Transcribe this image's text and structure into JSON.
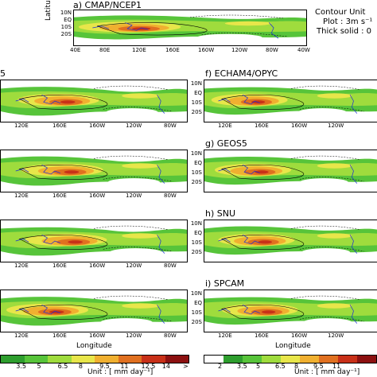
{
  "figure": {
    "panels": [
      {
        "id": "a",
        "title": "a) CMAP/NCEP1"
      },
      {
        "id": "b",
        "title": "5"
      },
      {
        "id": "c",
        "title": ""
      },
      {
        "id": "d",
        "title": ""
      },
      {
        "id": "e",
        "title": ""
      },
      {
        "id": "f",
        "title": "f) ECHAM4/OPYC"
      },
      {
        "id": "g",
        "title": "g) GEOS5"
      },
      {
        "id": "h",
        "title": "h) SNU"
      },
      {
        "id": "i",
        "title": "i) SPCAM"
      }
    ],
    "top_x_ticks": [
      "40E",
      "80E",
      "120E",
      "160E",
      "160W",
      "120W",
      "80W",
      "40W"
    ],
    "mid_x_ticks": [
      "120E",
      "160E",
      "160W",
      "120W",
      "80W"
    ],
    "lat_ticks": [
      "10N",
      "EQ",
      "10S",
      "20S"
    ],
    "ylabel": "Latitude",
    "xlabel": "Longitude",
    "contour_note": [
      "Contour Unit",
      "Plot : 3m s⁻¹",
      "Thick solid : 0"
    ],
    "left_colorbar_labels": [
      "3.5",
      "5",
      "6.5",
      "8",
      "9.5",
      "11",
      "12.5",
      "14",
      ">"
    ],
    "right_colorbar_labels": [
      "2",
      "3.5",
      "5",
      "6.5",
      "8",
      "9.5",
      "11"
    ],
    "unit_label": "Unit : [ mm day⁻¹]"
  },
  "colors": {
    "scale": [
      "#ffffff",
      "#2e9e2e",
      "#57c43a",
      "#9fdc3d",
      "#e8e64a",
      "#f0b030",
      "#e07020",
      "#c83018",
      "#8c1010"
    ],
    "contour": "#000000",
    "coast": "#1a2dd8"
  },
  "chart_data": {
    "type": "heatmap",
    "title": "",
    "xlabel": "Longitude",
    "ylabel": "Latitude",
    "x_ticks": [
      "40E",
      "80E",
      "120E",
      "160E",
      "160W",
      "120W",
      "80W",
      "40W"
    ],
    "y_ticks": [
      "10N",
      "EQ",
      "10S",
      "20S"
    ],
    "colorbar": {
      "labels": [
        "3.5",
        "5",
        "6.5",
        "8",
        "9.5",
        "11",
        "12.5",
        "14",
        ">"
      ],
      "unit": "Unit : [ mm day⁻¹]"
    },
    "panels": [
      "a) CMAP/NCEP1",
      "f) ECHAM4/OPYC",
      "g) GEOS5",
      "h) SNU",
      "i) SPCAM"
    ]
  }
}
